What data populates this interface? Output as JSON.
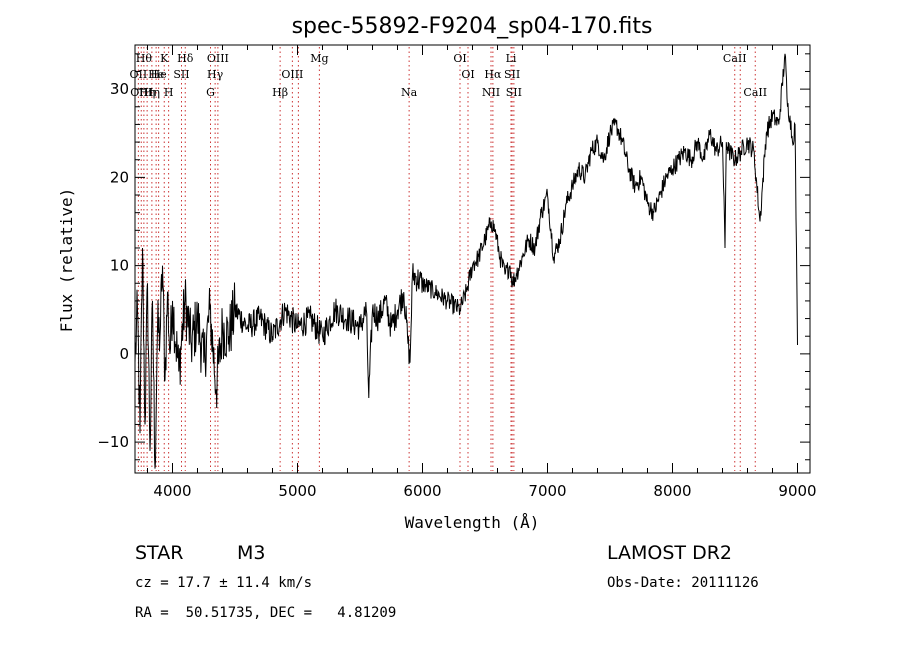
{
  "chart_data": {
    "type": "line",
    "title": "spec-55892-F9204_sp04-170.fits",
    "xlabel": "Wavelength (Å)",
    "ylabel": "Flux (relative)",
    "xlim": [
      3700,
      9100
    ],
    "ylim": [
      -13.5,
      35
    ],
    "x_ticks": [
      4000,
      5000,
      6000,
      7000,
      8000,
      9000
    ],
    "y_ticks": [
      -10,
      0,
      10,
      20,
      30
    ],
    "grid": false,
    "series": [
      {
        "x": [
          3700,
          3720,
          3740,
          3760,
          3780,
          3800,
          3820,
          3840,
          3860,
          3880,
          3900,
          3920,
          3940,
          3960,
          3980,
          4000,
          4050,
          4100,
          4150,
          4200,
          4250,
          4300,
          4350,
          4400,
          4450,
          4500,
          4600,
          4700,
          4800,
          4900,
          5000,
          5100,
          5200,
          5300,
          5400,
          5500,
          5550,
          5570,
          5600,
          5650,
          5700,
          5750,
          5800,
          5850,
          5880,
          5900,
          5920,
          6000,
          6100,
          6200,
          6300,
          6350,
          6400,
          6450,
          6500,
          6550,
          6580,
          6620,
          6660,
          6700,
          6720,
          6750,
          6800,
          6850,
          6900,
          6950,
          7000,
          7050,
          7100,
          7150,
          7200,
          7250,
          7300,
          7350,
          7400,
          7450,
          7500,
          7550,
          7600,
          7650,
          7700,
          7750,
          7800,
          7850,
          7900,
          7950,
          8000,
          8050,
          8100,
          8150,
          8200,
          8250,
          8300,
          8350,
          8400,
          8420,
          8430,
          8450,
          8500,
          8550,
          8600,
          8650,
          8700,
          8750,
          8800,
          8850,
          8900,
          8920,
          8940,
          8960,
          8980,
          9000
        ],
        "values": [
          -1,
          5,
          -9,
          12,
          -8,
          8,
          -11,
          6,
          -13,
          3,
          2,
          10,
          -3,
          7,
          0,
          6,
          -2,
          6,
          1,
          4,
          -1,
          5,
          -4,
          3,
          2,
          5,
          3,
          4,
          2,
          5,
          3,
          4,
          2,
          5,
          4,
          3,
          5,
          -5,
          5,
          4,
          6,
          3,
          5,
          7,
          2,
          -1,
          9,
          8,
          7,
          6,
          5,
          7,
          10,
          11,
          13,
          15,
          14,
          11,
          9,
          10,
          8,
          9,
          11,
          13,
          12,
          16,
          18,
          11,
          13,
          17,
          19,
          21,
          20,
          23,
          24,
          22,
          25,
          26,
          24,
          21,
          19,
          20,
          17,
          16,
          18,
          20,
          21,
          22,
          23,
          22,
          24,
          22,
          25,
          23,
          24,
          12,
          24,
          23,
          22,
          23,
          24,
          23,
          15,
          25,
          27,
          26,
          34,
          28,
          27,
          24,
          26,
          1
        ]
      }
    ],
    "lines": [
      {
        "wavelength": 3727,
        "label": "OII",
        "row": 1
      },
      {
        "wavelength": 3750,
        "label": "OIII",
        "row": 2
      },
      {
        "wavelength": 3771,
        "label": "Hθ",
        "row": 0
      },
      {
        "wavelength": 3797,
        "label": "Hη",
        "row": 2
      },
      {
        "wavelength": 3835,
        "label": "Hη",
        "row": 2
      },
      {
        "wavelength": 3869,
        "label": "He",
        "row": 1
      },
      {
        "wavelength": 3889,
        "label": "He",
        "row": 1
      },
      {
        "wavelength": 3934,
        "label": "K",
        "row": 0
      },
      {
        "wavelength": 3969,
        "label": "H",
        "row": 2
      },
      {
        "wavelength": 4072,
        "label": "SII",
        "row": 1
      },
      {
        "wavelength": 4102,
        "label": "Hδ",
        "row": 0
      },
      {
        "wavelength": 4304,
        "label": "G",
        "row": 2
      },
      {
        "wavelength": 4341,
        "label": "Hγ",
        "row": 1
      },
      {
        "wavelength": 4363,
        "label": "OIII",
        "row": 0
      },
      {
        "wavelength": 4861,
        "label": "Hβ",
        "row": 2
      },
      {
        "wavelength": 4959,
        "label": "OIII",
        "row": 1
      },
      {
        "wavelength": 5007,
        "label": "",
        "row": 1
      },
      {
        "wavelength": 5175,
        "label": "Mg",
        "row": 0
      },
      {
        "wavelength": 5893,
        "label": "Na",
        "row": 2
      },
      {
        "wavelength": 6300,
        "label": "OI",
        "row": 0
      },
      {
        "wavelength": 6364,
        "label": "OI",
        "row": 1
      },
      {
        "wavelength": 6548,
        "label": "NII",
        "row": 2
      },
      {
        "wavelength": 6563,
        "label": "Hα",
        "row": 1
      },
      {
        "wavelength": 6708,
        "label": "Li",
        "row": 0
      },
      {
        "wavelength": 6717,
        "label": "SII",
        "row": 1
      },
      {
        "wavelength": 6731,
        "label": "SII",
        "row": 2
      },
      {
        "wavelength": 8498,
        "label": "CaII",
        "row": 0
      },
      {
        "wavelength": 8542,
        "label": "",
        "row": 0
      },
      {
        "wavelength": 8662,
        "label": "CaII",
        "row": 2
      }
    ]
  },
  "info": {
    "object_class": "STAR",
    "subclass": "M3",
    "survey": "LAMOST DR2",
    "cz": "cz = 17.7 ± 11.4 km/s",
    "obs_date": "Obs-Date: 20111126",
    "coords": "RA =  50.51735, DEC =   4.81209"
  }
}
